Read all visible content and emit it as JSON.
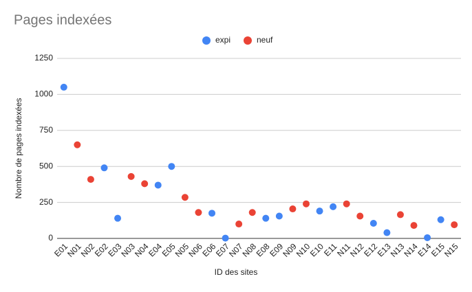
{
  "chart_data": {
    "type": "scatter",
    "title": "Pages indexées",
    "x_label": "ID des sites",
    "y_label": "Nombre de pages indexées",
    "categories": [
      "E01",
      "N01",
      "N02",
      "E02",
      "E03",
      "N03",
      "N04",
      "E04",
      "E05",
      "N05",
      "N06",
      "E06",
      "E07",
      "N07",
      "N08",
      "E08",
      "E09",
      "N09",
      "N10",
      "E10",
      "E11",
      "N11",
      "N12",
      "E12",
      "E13",
      "N13",
      "N14",
      "E14",
      "E15",
      "N15"
    ],
    "series": [
      {
        "name": "expi",
        "color": "#4285f4",
        "values": [
          1050,
          null,
          null,
          490,
          140,
          null,
          null,
          370,
          500,
          null,
          null,
          175,
          2,
          null,
          null,
          140,
          155,
          null,
          null,
          190,
          220,
          null,
          null,
          105,
          40,
          null,
          null,
          5,
          130,
          null
        ]
      },
      {
        "name": "neuf",
        "color": "#ea4335",
        "values": [
          null,
          650,
          410,
          null,
          null,
          430,
          380,
          null,
          null,
          285,
          180,
          null,
          null,
          100,
          180,
          null,
          null,
          205,
          240,
          null,
          null,
          240,
          155,
          null,
          null,
          165,
          90,
          null,
          null,
          95
        ]
      }
    ],
    "ylim": [
      0,
      1250
    ],
    "yticks": [
      0,
      250,
      500,
      750,
      1000,
      1250
    ],
    "grid": true,
    "legend": "top"
  }
}
